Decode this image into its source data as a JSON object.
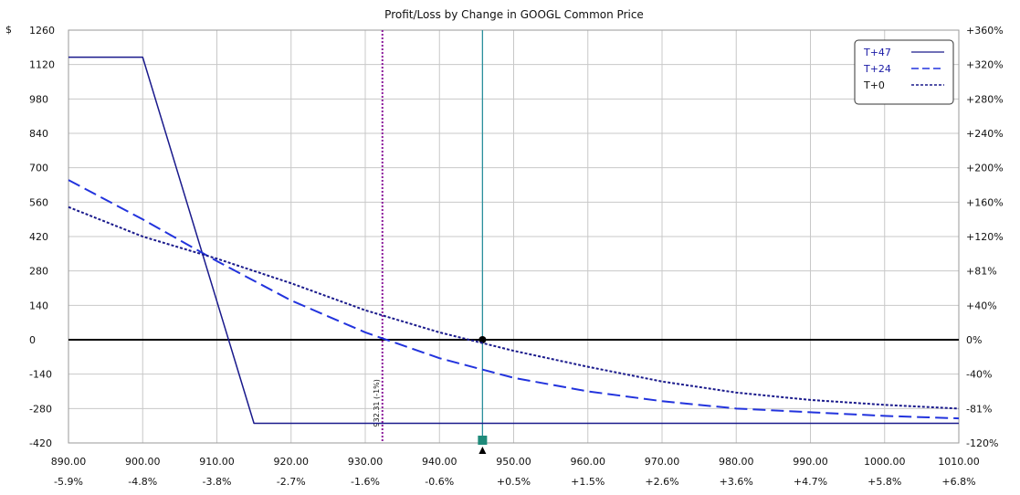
{
  "chart_data": {
    "type": "line",
    "title": "Profit/Loss by Change in GOOGL Common Price",
    "y_unit_label": "$",
    "xlim": [
      890,
      1010
    ],
    "ylim": [
      -420,
      1260
    ],
    "x_ticks": [
      {
        "value": 890,
        "label": "890.00",
        "pct": "-5.9%"
      },
      {
        "value": 900,
        "label": "900.00",
        "pct": "-4.8%"
      },
      {
        "value": 910,
        "label": "910.00",
        "pct": "-3.8%"
      },
      {
        "value": 920,
        "label": "920.00",
        "pct": "-2.7%"
      },
      {
        "value": 930,
        "label": "930.00",
        "pct": "-1.6%"
      },
      {
        "value": 940,
        "label": "940.00",
        "pct": "-0.6%"
      },
      {
        "value": 950,
        "label": "950.00",
        "pct": "+0.5%"
      },
      {
        "value": 960,
        "label": "960.00",
        "pct": "+1.5%"
      },
      {
        "value": 970,
        "label": "970.00",
        "pct": "+2.6%"
      },
      {
        "value": 980,
        "label": "980.00",
        "pct": "+3.6%"
      },
      {
        "value": 990,
        "label": "990.00",
        "pct": "+4.7%"
      },
      {
        "value": 1000,
        "label": "1000.00",
        "pct": "+5.8%"
      },
      {
        "value": 1010,
        "label": "1010.00",
        "pct": "+6.8%"
      }
    ],
    "y_ticks": [
      {
        "value": 1260,
        "label": "1260",
        "pct": "+360%"
      },
      {
        "value": 1120,
        "label": "1120",
        "pct": "+320%"
      },
      {
        "value": 980,
        "label": "980",
        "pct": "+280%"
      },
      {
        "value": 840,
        "label": "840",
        "pct": "+240%"
      },
      {
        "value": 700,
        "label": "700",
        "pct": "+200%"
      },
      {
        "value": 560,
        "label": "560",
        "pct": "+160%"
      },
      {
        "value": 420,
        "label": "420",
        "pct": "+120%"
      },
      {
        "value": 280,
        "label": "280",
        "pct": "+81%"
      },
      {
        "value": 140,
        "label": "140",
        "pct": "+40%"
      },
      {
        "value": 0,
        "label": "0",
        "pct": "0%"
      },
      {
        "value": -140,
        "label": "-140",
        "pct": "-40%"
      },
      {
        "value": -280,
        "label": "-280",
        "pct": "-81%"
      },
      {
        "value": -420,
        "label": "-420",
        "pct": "-120%"
      }
    ],
    "grid": true,
    "legend_position": "top-right",
    "series": [
      {
        "name": "T+47",
        "style": "solid",
        "color": "#1a1a8c",
        "x": [
          890,
          900,
          915,
          1010
        ],
        "y": [
          1150,
          1150,
          -340,
          -340
        ]
      },
      {
        "name": "T+24",
        "legend_symbol": "*— -",
        "style": "dashed",
        "color": "#2233dd",
        "x": [
          890,
          900,
          910,
          920,
          930,
          940,
          950,
          960,
          970,
          980,
          990,
          1000,
          1010
        ],
        "y": [
          650,
          490,
          320,
          160,
          30,
          -75,
          -155,
          -210,
          -250,
          -280,
          -295,
          -310,
          -320
        ]
      },
      {
        "name": "T+0",
        "legend_symbol": "-----",
        "style": "dotted",
        "color": "#1a1a8c",
        "x": [
          890,
          900,
          910,
          920,
          930,
          940,
          950,
          960,
          970,
          980,
          990,
          1000,
          1010
        ],
        "y": [
          540,
          420,
          330,
          230,
          120,
          30,
          -45,
          -110,
          -170,
          -215,
          -245,
          -265,
          -280
        ]
      }
    ],
    "markers": {
      "current_price_x": 945.8,
      "current_price_line_color": "#2a8f9c",
      "breakeven_x": 932.31,
      "breakeven_label": "932.31 (-1%)",
      "breakeven_line_color": "#8b1a9b",
      "zero_cross_point": {
        "x": 945.8,
        "y": 0
      }
    }
  }
}
